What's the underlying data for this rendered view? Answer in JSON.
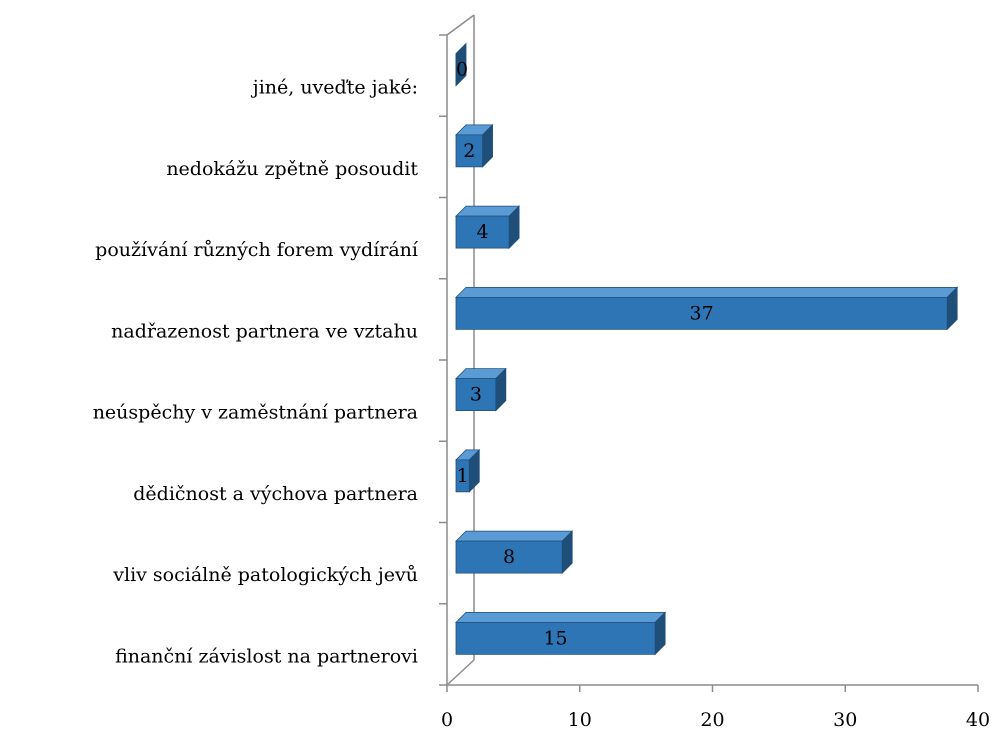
{
  "chart_data": {
    "type": "bar3d_horizontal",
    "categories": [
      "finanční závislost na partnerovi",
      "vliv sociálně patologických jevů",
      "dědičnost a výchova partnera",
      "neúspěchy v zaměstnání partnera",
      "nadřazenost partnera ve vztahu",
      "používání různých forem vydírání",
      "nedokážu zpětně posoudit",
      "jiné, uveďte jaké:"
    ],
    "values": [
      15,
      8,
      1,
      3,
      37,
      4,
      2,
      0
    ],
    "color": "#2e75b6",
    "xlim": [
      0,
      40
    ],
    "xticks": [
      0,
      10,
      20,
      30,
      40
    ]
  }
}
